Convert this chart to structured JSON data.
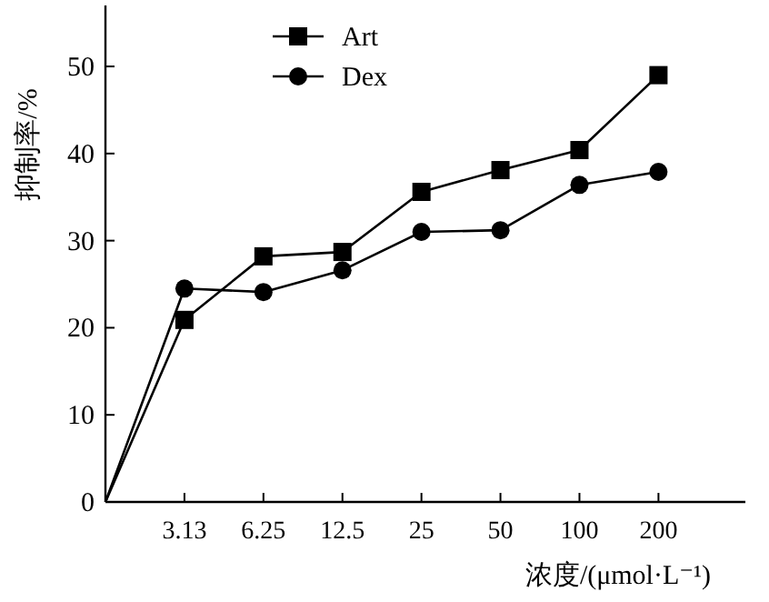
{
  "chart_data": {
    "type": "line",
    "xlabel": "浓度/(μmol·L⁻¹)",
    "ylabel": "抑制率/%",
    "categories": [
      null,
      "3.13",
      "6.25",
      "12.5",
      "25",
      "50",
      "100",
      "200"
    ],
    "series": [
      {
        "name": "Art",
        "color": "#000000",
        "marker": "square",
        "values": [
          0,
          20.9,
          28.2,
          28.7,
          35.6,
          38.1,
          40.4,
          49.0
        ]
      },
      {
        "name": "Dex",
        "color": "#000000",
        "marker": "circle",
        "values": [
          0,
          24.5,
          24.1,
          26.6,
          31.0,
          31.2,
          36.4,
          37.9
        ]
      }
    ],
    "ylim": [
      0,
      57
    ],
    "yticks": [
      0,
      10,
      20,
      30,
      40,
      50
    ],
    "legend": "top left",
    "grid": false,
    "line_style": "solid"
  }
}
